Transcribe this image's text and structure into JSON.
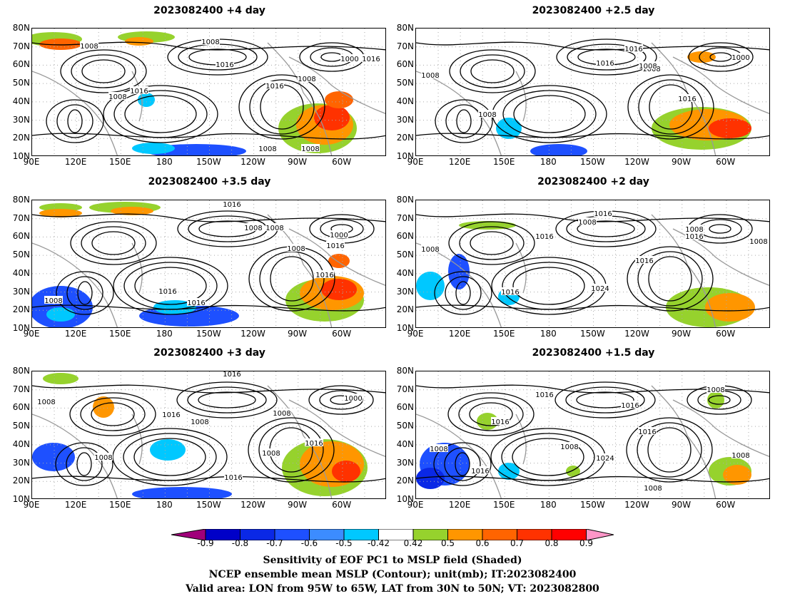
{
  "panels": [
    {
      "title": "2023082400  +4 day",
      "contours": [
        "1008",
        "1008",
        "1008",
        "1016",
        "1016",
        "1008",
        "1016",
        "1000",
        "1016",
        "1008",
        "1008"
      ]
    },
    {
      "title": "2023082400  +2.5 day",
      "contours": [
        "1016",
        "1016",
        "1008",
        "1000",
        "1008",
        "1008",
        "1016",
        "1008"
      ]
    },
    {
      "title": "2023082400  +3.5 day",
      "contours": [
        "1016",
        "1008",
        "1008",
        "1000",
        "1016",
        "1016",
        "1008",
        "1016",
        "1016",
        "1008"
      ]
    },
    {
      "title": "2023082400  +2 day",
      "contours": [
        "1016",
        "1008",
        "1016",
        "1008",
        "1016",
        "1016",
        "1008",
        "1016",
        "1024",
        "1008"
      ]
    },
    {
      "title": "2023082400  +3 day",
      "contours": [
        "1016",
        "1008",
        "1016",
        "1008",
        "1000",
        "1008",
        "1016",
        "1008",
        "1016",
        "1008"
      ]
    },
    {
      "title": "2023082400  +1.5 day",
      "contours": [
        "1016",
        "1008",
        "1016",
        "1016",
        "1016",
        "1008",
        "1024",
        "1008",
        "1016",
        "1008",
        "1008"
      ]
    }
  ],
  "axes": {
    "lat_labels": [
      "80N",
      "70N",
      "60N",
      "50N",
      "40N",
      "30N",
      "20N",
      "10N"
    ],
    "lon_labels": [
      "90E",
      "120E",
      "150E",
      "180",
      "150W",
      "120W",
      "90W",
      "60W"
    ]
  },
  "colorbar": {
    "labels": [
      "-0.9",
      "-0.8",
      "-0.7",
      "-0.6",
      "-0.5",
      "-0.42",
      "0.42",
      "0.5",
      "0.6",
      "0.7",
      "0.8",
      "0.9"
    ],
    "colors": [
      "#a0007a",
      "#0000c8",
      "#0a28e6",
      "#1e50ff",
      "#3c8cff",
      "#00c8ff",
      "#ffffff",
      "#96d22d",
      "#ff9600",
      "#ff6400",
      "#ff3200",
      "#ff0000",
      "#ff96c8"
    ]
  },
  "footer": [
    "Sensitivity of EOF PC1 to MSLP field (Shaded)",
    "NCEP ensemble mean MSLP (Contour); unit(mb); IT:2023082400",
    "Valid area: LON from 95W to 65W, LAT from 30N to 50N; VT: 2023082800"
  ]
}
